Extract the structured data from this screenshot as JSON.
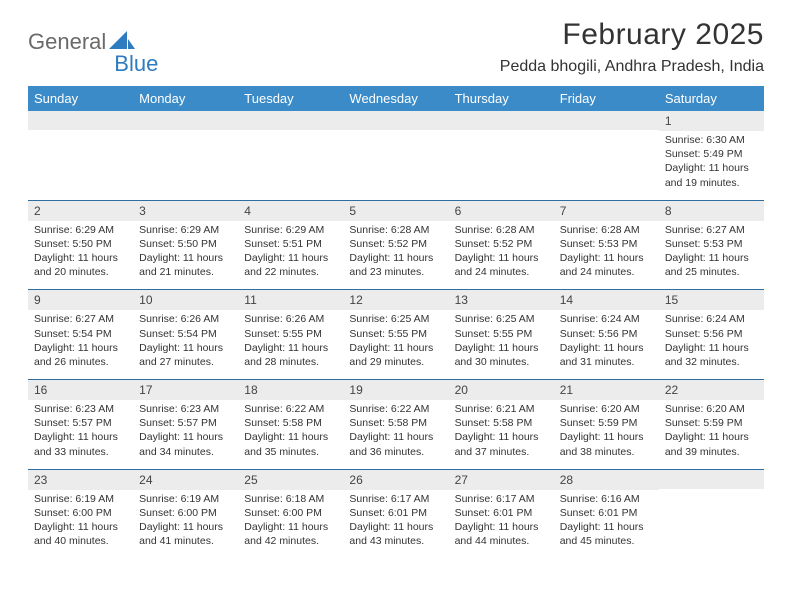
{
  "brand": {
    "part1": "General",
    "part2": "Blue"
  },
  "title": {
    "month": "February 2025",
    "location": "Pedda bhogili, Andhra Pradesh, India"
  },
  "colors": {
    "header_bg": "#3b8bc8",
    "header_fg": "#ffffff",
    "row_border": "#2f6d9e",
    "daynum_bg": "#ececec",
    "brand_gray": "#6a6a6a",
    "brand_blue": "#2f7bbf"
  },
  "layout": {
    "cols": 7,
    "rows": 5
  },
  "weekdays": [
    "Sunday",
    "Monday",
    "Tuesday",
    "Wednesday",
    "Thursday",
    "Friday",
    "Saturday"
  ],
  "weeks": [
    [
      null,
      null,
      null,
      null,
      null,
      null,
      {
        "n": "1",
        "sr": "6:30 AM",
        "ss": "5:49 PM",
        "dl": "11 hours and 19 minutes."
      }
    ],
    [
      {
        "n": "2",
        "sr": "6:29 AM",
        "ss": "5:50 PM",
        "dl": "11 hours and 20 minutes."
      },
      {
        "n": "3",
        "sr": "6:29 AM",
        "ss": "5:50 PM",
        "dl": "11 hours and 21 minutes."
      },
      {
        "n": "4",
        "sr": "6:29 AM",
        "ss": "5:51 PM",
        "dl": "11 hours and 22 minutes."
      },
      {
        "n": "5",
        "sr": "6:28 AM",
        "ss": "5:52 PM",
        "dl": "11 hours and 23 minutes."
      },
      {
        "n": "6",
        "sr": "6:28 AM",
        "ss": "5:52 PM",
        "dl": "11 hours and 24 minutes."
      },
      {
        "n": "7",
        "sr": "6:28 AM",
        "ss": "5:53 PM",
        "dl": "11 hours and 24 minutes."
      },
      {
        "n": "8",
        "sr": "6:27 AM",
        "ss": "5:53 PM",
        "dl": "11 hours and 25 minutes."
      }
    ],
    [
      {
        "n": "9",
        "sr": "6:27 AM",
        "ss": "5:54 PM",
        "dl": "11 hours and 26 minutes."
      },
      {
        "n": "10",
        "sr": "6:26 AM",
        "ss": "5:54 PM",
        "dl": "11 hours and 27 minutes."
      },
      {
        "n": "11",
        "sr": "6:26 AM",
        "ss": "5:55 PM",
        "dl": "11 hours and 28 minutes."
      },
      {
        "n": "12",
        "sr": "6:25 AM",
        "ss": "5:55 PM",
        "dl": "11 hours and 29 minutes."
      },
      {
        "n": "13",
        "sr": "6:25 AM",
        "ss": "5:55 PM",
        "dl": "11 hours and 30 minutes."
      },
      {
        "n": "14",
        "sr": "6:24 AM",
        "ss": "5:56 PM",
        "dl": "11 hours and 31 minutes."
      },
      {
        "n": "15",
        "sr": "6:24 AM",
        "ss": "5:56 PM",
        "dl": "11 hours and 32 minutes."
      }
    ],
    [
      {
        "n": "16",
        "sr": "6:23 AM",
        "ss": "5:57 PM",
        "dl": "11 hours and 33 minutes."
      },
      {
        "n": "17",
        "sr": "6:23 AM",
        "ss": "5:57 PM",
        "dl": "11 hours and 34 minutes."
      },
      {
        "n": "18",
        "sr": "6:22 AM",
        "ss": "5:58 PM",
        "dl": "11 hours and 35 minutes."
      },
      {
        "n": "19",
        "sr": "6:22 AM",
        "ss": "5:58 PM",
        "dl": "11 hours and 36 minutes."
      },
      {
        "n": "20",
        "sr": "6:21 AM",
        "ss": "5:58 PM",
        "dl": "11 hours and 37 minutes."
      },
      {
        "n": "21",
        "sr": "6:20 AM",
        "ss": "5:59 PM",
        "dl": "11 hours and 38 minutes."
      },
      {
        "n": "22",
        "sr": "6:20 AM",
        "ss": "5:59 PM",
        "dl": "11 hours and 39 minutes."
      }
    ],
    [
      {
        "n": "23",
        "sr": "6:19 AM",
        "ss": "6:00 PM",
        "dl": "11 hours and 40 minutes."
      },
      {
        "n": "24",
        "sr": "6:19 AM",
        "ss": "6:00 PM",
        "dl": "11 hours and 41 minutes."
      },
      {
        "n": "25",
        "sr": "6:18 AM",
        "ss": "6:00 PM",
        "dl": "11 hours and 42 minutes."
      },
      {
        "n": "26",
        "sr": "6:17 AM",
        "ss": "6:01 PM",
        "dl": "11 hours and 43 minutes."
      },
      {
        "n": "27",
        "sr": "6:17 AM",
        "ss": "6:01 PM",
        "dl": "11 hours and 44 minutes."
      },
      {
        "n": "28",
        "sr": "6:16 AM",
        "ss": "6:01 PM",
        "dl": "11 hours and 45 minutes."
      },
      null
    ]
  ],
  "labels": {
    "sunrise": "Sunrise:",
    "sunset": "Sunset:",
    "daylight": "Daylight:"
  }
}
